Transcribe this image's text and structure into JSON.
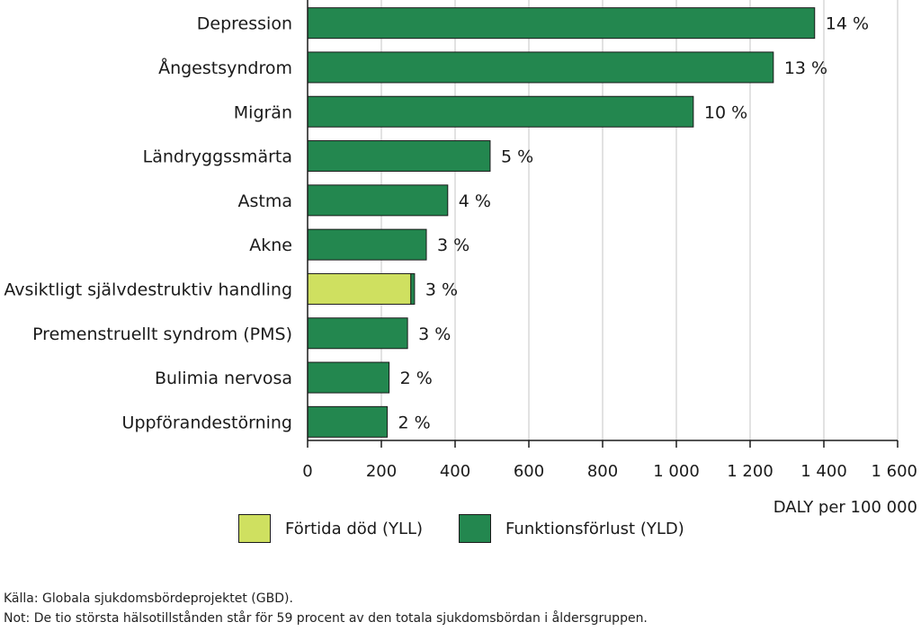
{
  "chart_data": {
    "type": "bar",
    "orientation": "horizontal",
    "categories": [
      "Depression",
      "Ångestsyndrom",
      "Migrän",
      "Ländryggssmärta",
      "Astma",
      "Akne",
      "Avsiktligt självdestruktiv handling",
      "Premenstruellt syndrom (PMS)",
      "Bulimia nervosa",
      "Uppförandestörning"
    ],
    "series": [
      {
        "name": "Förtida död (YLL)",
        "color": "#cfe060",
        "values": [
          0,
          0,
          0,
          0,
          0,
          0,
          280,
          0,
          0,
          0
        ]
      },
      {
        "name": "Funktionsförlust (YLD)",
        "color": "#23874f",
        "values": [
          1375,
          1263,
          1046,
          495,
          380,
          322,
          10,
          271,
          221,
          216
        ]
      }
    ],
    "data_labels": [
      "14 %",
      "13 %",
      "10 %",
      "5 %",
      "4 %",
      "3 %",
      "3 %",
      "3 %",
      "2 %",
      "2 %"
    ],
    "xlim": [
      0,
      1600
    ],
    "xticks": [
      0,
      200,
      400,
      600,
      800,
      1000,
      1200,
      1400,
      1600
    ],
    "xtick_labels": [
      "0",
      "200",
      "400",
      "600",
      "800",
      "1 000",
      "1 200",
      "1 400",
      "1 600"
    ],
    "xlabel": "DALY per 100 000",
    "ylabel": "",
    "title": "",
    "grid": "vertical",
    "legend_position": "bottom"
  },
  "legend": {
    "yll_label": "Förtida död (YLL)",
    "yld_label": "Funktionsförlust (YLD)"
  },
  "notes": {
    "source": "Källa: Globala sjukdomsbördeprojektet (GBD).",
    "note": "Not: De tio största hälsotillstånden står för 59 procent av den totala sjukdomsbördan i åldersgruppen."
  }
}
